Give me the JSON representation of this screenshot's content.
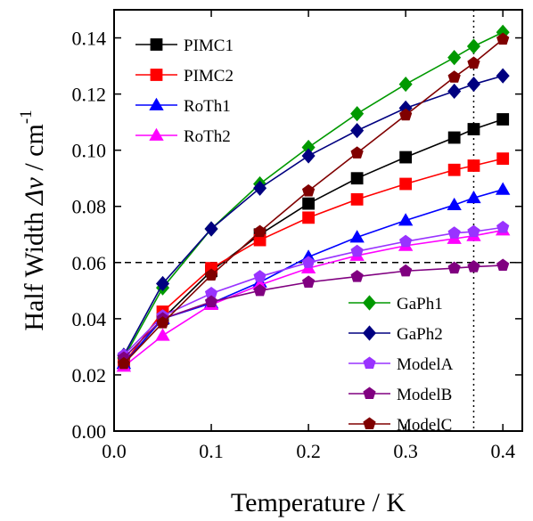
{
  "chart_data": {
    "type": "line",
    "title": "",
    "xlabel": "Temperature / K",
    "ylabel_prefix": "Half Width ",
    "ylabel_symbol": "Δν",
    "ylabel_unit": " / cm",
    "ylabel_exponent": "-1",
    "xlim": [
      0.0,
      0.42
    ],
    "ylim": [
      0.0,
      0.15
    ],
    "xticks": [
      0.0,
      0.1,
      0.2,
      0.3,
      0.4
    ],
    "xtick_labels": [
      "0.0",
      "0.1",
      "0.2",
      "0.3",
      "0.4"
    ],
    "yticks": [
      0.0,
      0.02,
      0.04,
      0.06,
      0.08,
      0.1,
      0.12,
      0.14
    ],
    "ytick_labels": [
      "0.00",
      "0.02",
      "0.04",
      "0.06",
      "0.08",
      "0.10",
      "0.12",
      "0.14"
    ],
    "reference_lines": [
      {
        "orientation": "horizontal",
        "value": 0.06,
        "style": "dashed"
      },
      {
        "orientation": "vertical",
        "value": 0.37,
        "style": "dotted"
      }
    ],
    "grid": false,
    "legend_groups": [
      {
        "placement": "top-left",
        "series": [
          "PIMC1",
          "PIMC2",
          "RoTh1",
          "RoTh2"
        ]
      },
      {
        "placement": "bottom-right",
        "series": [
          "GaPh1",
          "GaPh2",
          "ModelA",
          "ModelB",
          "ModelC"
        ]
      }
    ],
    "x": [
      0.01,
      0.05,
      0.1,
      0.15,
      0.2,
      0.25,
      0.3,
      0.35,
      0.37,
      0.4
    ],
    "series": [
      {
        "name": "PIMC1",
        "color": "#000000",
        "marker": "square",
        "values": [
          0.024,
          0.04,
          0.057,
          0.07,
          0.081,
          0.09,
          0.0975,
          0.1045,
          0.1075,
          0.111
        ]
      },
      {
        "name": "PIMC2",
        "color": "#ff0000",
        "marker": "square",
        "values": [
          0.024,
          0.0425,
          0.058,
          0.068,
          0.076,
          0.0825,
          0.088,
          0.093,
          0.0945,
          0.097
        ]
      },
      {
        "name": "RoTh1",
        "color": "#0000ff",
        "marker": "triangle",
        "values": [
          0.024,
          0.04,
          0.0455,
          0.053,
          0.062,
          0.069,
          0.075,
          0.0805,
          0.083,
          0.086
        ]
      },
      {
        "name": "RoTh2",
        "color": "#ff00ff",
        "marker": "triangle",
        "values": [
          0.023,
          0.034,
          0.045,
          0.052,
          0.058,
          0.0625,
          0.066,
          0.0685,
          0.0695,
          0.0715
        ]
      },
      {
        "name": "GaPh1",
        "color": "#009900",
        "marker": "diamond",
        "values": [
          0.026,
          0.051,
          0.072,
          0.088,
          0.101,
          0.113,
          0.1235,
          0.133,
          0.137,
          0.142
        ]
      },
      {
        "name": "GaPh2",
        "color": "#000080",
        "marker": "diamond",
        "values": [
          0.027,
          0.0525,
          0.072,
          0.0865,
          0.098,
          0.107,
          0.115,
          0.121,
          0.1235,
          0.1265
        ]
      },
      {
        "name": "ModelA",
        "color": "#9933ff",
        "marker": "pentagon",
        "values": [
          0.027,
          0.041,
          0.049,
          0.055,
          0.06,
          0.064,
          0.0675,
          0.0705,
          0.071,
          0.0725
        ]
      },
      {
        "name": "ModelB",
        "color": "#800080",
        "marker": "pentagon",
        "values": [
          0.026,
          0.04,
          0.046,
          0.05,
          0.053,
          0.055,
          0.057,
          0.058,
          0.0585,
          0.059
        ]
      },
      {
        "name": "ModelC",
        "color": "#800000",
        "marker": "pentagon",
        "values": [
          0.024,
          0.0385,
          0.0555,
          0.071,
          0.0855,
          0.099,
          0.1125,
          0.126,
          0.131,
          0.1395
        ]
      }
    ]
  }
}
